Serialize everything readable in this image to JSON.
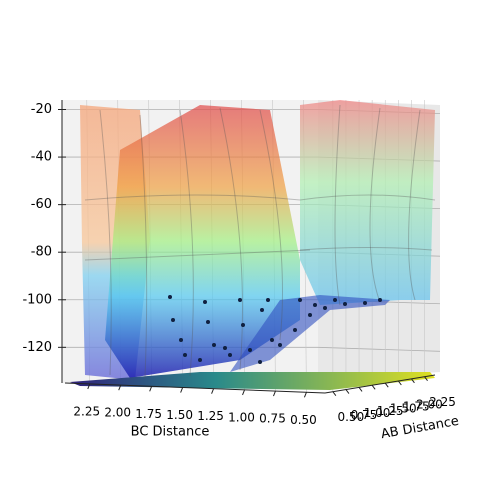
{
  "chart_data": {
    "type": "surface3d",
    "xlabel": "BC Distance",
    "ylabel": "AB Distance",
    "xlim": [
      2.45,
      0.35
    ],
    "xticks": [
      2.25,
      {
        "value": 2,
        "label": "2.00"
      },
      1.75,
      {
        "value": 1.5,
        "label": "1.50"
      },
      1.25,
      {
        "value": 1,
        "label": "1.00"
      },
      0.75,
      {
        "value": 0.5,
        "label": "0.50"
      }
    ],
    "ylim": [
      0.35,
      2.45
    ],
    "yticks": [
      {
        "value": 0.5,
        "label": "0.50"
      },
      0.75,
      {
        "value": 1,
        "label": "1.00"
      },
      1.25,
      {
        "value": 1.5,
        "label": "1.50"
      },
      1.75,
      {
        "value": 2,
        "label": "2.00"
      },
      2.25
    ],
    "zlim": [
      -135,
      -16
    ],
    "zticks": [
      -20,
      -40,
      -60,
      -80,
      -100,
      -120
    ],
    "grid": true
  }
}
